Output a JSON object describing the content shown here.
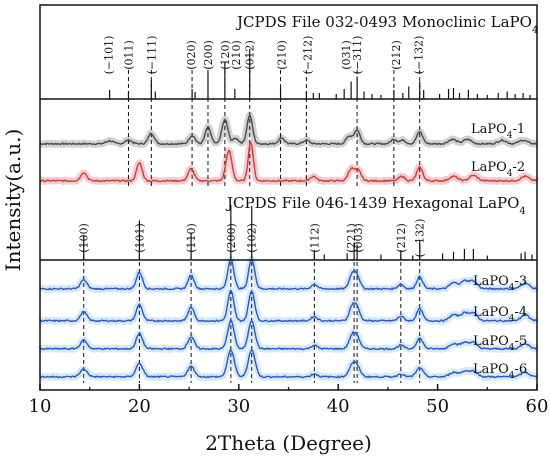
{
  "chart_data": {
    "type": "line",
    "xlabel": "2Theta (Degree)",
    "ylabel": "Intensity(a.u.)",
    "xlim": [
      10,
      60
    ],
    "x_ticks": [
      "10",
      "20",
      "30",
      "40",
      "50",
      "60"
    ],
    "reference_cards": [
      {
        "title": "JCPDS File  032-0493  Monoclinic LaPO",
        "subscript": "4",
        "sticks": [
          {
            "x": 17.0,
            "h": 0.18
          },
          {
            "x": 18.9,
            "h": 0.15
          },
          {
            "x": 21.2,
            "h": 0.38
          },
          {
            "x": 21.6,
            "h": 0.15
          },
          {
            "x": 25.3,
            "h": 0.2
          },
          {
            "x": 25.6,
            "h": 0.14
          },
          {
            "x": 26.9,
            "h": 0.55
          },
          {
            "x": 28.6,
            "h": 0.75
          },
          {
            "x": 29.6,
            "h": 0.2
          },
          {
            "x": 31.1,
            "h": 1.0
          },
          {
            "x": 34.2,
            "h": 0.22
          },
          {
            "x": 36.8,
            "h": 0.15
          },
          {
            "x": 37.5,
            "h": 0.12
          },
          {
            "x": 38.1,
            "h": 0.12
          },
          {
            "x": 39.8,
            "h": 0.1
          },
          {
            "x": 40.6,
            "h": 0.2
          },
          {
            "x": 41.3,
            "h": 0.35
          },
          {
            "x": 41.9,
            "h": 0.45
          },
          {
            "x": 42.6,
            "h": 0.15
          },
          {
            "x": 43.4,
            "h": 0.1
          },
          {
            "x": 44.3,
            "h": 0.08
          },
          {
            "x": 45.6,
            "h": 0.18
          },
          {
            "x": 46.5,
            "h": 0.12
          },
          {
            "x": 47.1,
            "h": 0.25
          },
          {
            "x": 48.2,
            "h": 0.35
          },
          {
            "x": 48.6,
            "h": 0.18
          },
          {
            "x": 50.2,
            "h": 0.1
          },
          {
            "x": 51.1,
            "h": 0.2
          },
          {
            "x": 51.6,
            "h": 0.22
          },
          {
            "x": 52.2,
            "h": 0.12
          },
          {
            "x": 53.1,
            "h": 0.18
          },
          {
            "x": 54.0,
            "h": 0.1
          },
          {
            "x": 55.0,
            "h": 0.08
          },
          {
            "x": 56.1,
            "h": 0.12
          },
          {
            "x": 57.0,
            "h": 0.15
          },
          {
            "x": 57.8,
            "h": 0.1
          },
          {
            "x": 58.6,
            "h": 0.12
          },
          {
            "x": 59.3,
            "h": 0.08
          }
        ],
        "miller": [
          {
            "x": 16.9,
            "label": "(−101)"
          },
          {
            "x": 18.9,
            "label": "(011)"
          },
          {
            "x": 21.2,
            "label": "(−111)"
          },
          {
            "x": 25.2,
            "label": "(020)"
          },
          {
            "x": 26.9,
            "label": "(200)"
          },
          {
            "x": 28.6,
            "label": "(120)"
          },
          {
            "x": 29.7,
            "label": "(210)"
          },
          {
            "x": 31.1,
            "label": "(012)"
          },
          {
            "x": 34.3,
            "label": "(210)"
          },
          {
            "x": 36.9,
            "label": "(−212)"
          },
          {
            "x": 40.8,
            "label": "(031)"
          },
          {
            "x": 41.9,
            "label": "(−311)"
          },
          {
            "x": 45.8,
            "label": "(212)"
          },
          {
            "x": 48.1,
            "label": "(−132)"
          }
        ],
        "guides": [
          18.9,
          21.2,
          25.3,
          26.9,
          28.6,
          31.1,
          34.2,
          36.8,
          41.9,
          45.6,
          48.2
        ]
      },
      {
        "title": "JCPDS File  046-1439 Hexagonal LaPO",
        "subscript": "4",
        "sticks": [
          {
            "x": 14.4,
            "h": 0.45
          },
          {
            "x": 20.0,
            "h": 0.72
          },
          {
            "x": 25.2,
            "h": 0.5
          },
          {
            "x": 29.2,
            "h": 1.0
          },
          {
            "x": 31.3,
            "h": 0.98
          },
          {
            "x": 37.6,
            "h": 0.18
          },
          {
            "x": 38.6,
            "h": 0.1
          },
          {
            "x": 40.9,
            "h": 0.12
          },
          {
            "x": 41.6,
            "h": 0.3
          },
          {
            "x": 41.9,
            "h": 0.28
          },
          {
            "x": 44.3,
            "h": 0.1
          },
          {
            "x": 46.3,
            "h": 0.18
          },
          {
            "x": 47.5,
            "h": 0.08
          },
          {
            "x": 48.2,
            "h": 0.35
          },
          {
            "x": 50.5,
            "h": 0.12
          },
          {
            "x": 51.6,
            "h": 0.15
          },
          {
            "x": 52.7,
            "h": 0.2
          },
          {
            "x": 53.6,
            "h": 0.2
          },
          {
            "x": 55.0,
            "h": 0.08
          },
          {
            "x": 58.4,
            "h": 0.12
          },
          {
            "x": 58.8,
            "h": 0.15
          },
          {
            "x": 59.5,
            "h": 0.1
          }
        ],
        "miller": [
          {
            "x": 14.4,
            "label": "(100)"
          },
          {
            "x": 20.0,
            "label": "(101)"
          },
          {
            "x": 25.2,
            "label": "(110)"
          },
          {
            "x": 29.2,
            "label": "(200)"
          },
          {
            "x": 31.3,
            "label": "(102)"
          },
          {
            "x": 37.6,
            "label": "(112)"
          },
          {
            "x": 41.3,
            "label": "(221)"
          },
          {
            "x": 42.0,
            "label": "(003)"
          },
          {
            "x": 46.3,
            "label": "(212)"
          },
          {
            "x": 48.2,
            "label": "(−132)"
          }
        ],
        "guides": [
          14.4,
          20.0,
          25.2,
          29.2,
          31.3,
          37.6,
          41.6,
          41.9,
          46.3,
          48.2
        ]
      }
    ],
    "series": [
      {
        "name": "LaPO",
        "subscript": "4",
        "suffix": "-1",
        "color": "#4a4a4a",
        "band": "#cccccc",
        "group": "monoclinic",
        "peaks": [
          {
            "x": 17.0,
            "h": 0.1,
            "w": 0.35
          },
          {
            "x": 18.9,
            "h": 0.12,
            "w": 0.35
          },
          {
            "x": 21.2,
            "h": 0.35,
            "w": 0.3
          },
          {
            "x": 25.3,
            "h": 0.28,
            "w": 0.3
          },
          {
            "x": 26.9,
            "h": 0.55,
            "w": 0.28
          },
          {
            "x": 28.6,
            "h": 0.8,
            "w": 0.3
          },
          {
            "x": 29.7,
            "h": 0.18,
            "w": 0.3
          },
          {
            "x": 31.1,
            "h": 0.95,
            "w": 0.28
          },
          {
            "x": 34.3,
            "h": 0.2,
            "w": 0.3
          },
          {
            "x": 36.8,
            "h": 0.12,
            "w": 0.3
          },
          {
            "x": 41.1,
            "h": 0.25,
            "w": 0.3
          },
          {
            "x": 41.9,
            "h": 0.45,
            "w": 0.3
          },
          {
            "x": 45.6,
            "h": 0.15,
            "w": 0.3
          },
          {
            "x": 46.5,
            "h": 0.12,
            "w": 0.3
          },
          {
            "x": 48.2,
            "h": 0.4,
            "w": 0.3
          },
          {
            "x": 51.5,
            "h": 0.15,
            "w": 0.4
          },
          {
            "x": 53.0,
            "h": 0.15,
            "w": 0.4
          },
          {
            "x": 56.5,
            "h": 0.12,
            "w": 0.4
          },
          {
            "x": 58.6,
            "h": 0.12,
            "w": 0.4
          }
        ]
      },
      {
        "name": "LaPO",
        "subscript": "4",
        "suffix": "-2",
        "color": "#c8422f",
        "band": "#f4c6cf",
        "group": "monoclinic",
        "peaks": [
          {
            "x": 14.4,
            "h": 0.28,
            "w": 0.3
          },
          {
            "x": 20.0,
            "h": 0.6,
            "w": 0.28
          },
          {
            "x": 25.2,
            "h": 0.4,
            "w": 0.3
          },
          {
            "x": 29.0,
            "h": 1.0,
            "w": 0.3
          },
          {
            "x": 31.2,
            "h": 1.3,
            "w": 0.25
          },
          {
            "x": 37.5,
            "h": 0.15,
            "w": 0.3
          },
          {
            "x": 41.3,
            "h": 0.4,
            "w": 0.3
          },
          {
            "x": 42.0,
            "h": 0.35,
            "w": 0.3
          },
          {
            "x": 46.4,
            "h": 0.15,
            "w": 0.3
          },
          {
            "x": 48.2,
            "h": 0.45,
            "w": 0.3
          },
          {
            "x": 51.6,
            "h": 0.15,
            "w": 0.4
          },
          {
            "x": 53.6,
            "h": 0.18,
            "w": 0.4
          },
          {
            "x": 58.8,
            "h": 0.15,
            "w": 0.4
          }
        ]
      },
      {
        "name": "LaPO",
        "subscript": "4",
        "suffix": "-3",
        "color": "#2f56c8",
        "band": "#cfe8f7",
        "group": "hexagonal",
        "peaks": [
          {
            "x": 14.4,
            "h": 0.3,
            "w": 0.32
          },
          {
            "x": 20.0,
            "h": 0.55,
            "w": 0.3
          },
          {
            "x": 25.2,
            "h": 0.45,
            "w": 0.3
          },
          {
            "x": 29.2,
            "h": 1.0,
            "w": 0.3
          },
          {
            "x": 31.3,
            "h": 1.0,
            "w": 0.3
          },
          {
            "x": 37.6,
            "h": 0.15,
            "w": 0.3
          },
          {
            "x": 41.4,
            "h": 0.45,
            "w": 0.3
          },
          {
            "x": 41.9,
            "h": 0.4,
            "w": 0.3
          },
          {
            "x": 46.3,
            "h": 0.15,
            "w": 0.3
          },
          {
            "x": 48.2,
            "h": 0.4,
            "w": 0.3
          },
          {
            "x": 51.6,
            "h": 0.2,
            "w": 0.4
          },
          {
            "x": 52.7,
            "h": 0.25,
            "w": 0.4
          },
          {
            "x": 53.6,
            "h": 0.25,
            "w": 0.4
          },
          {
            "x": 58.8,
            "h": 0.2,
            "w": 0.4
          }
        ]
      },
      {
        "name": "LaPO",
        "subscript": "4",
        "suffix": "-4",
        "color": "#2f56c8",
        "band": "#cfe8f7",
        "group": "hexagonal",
        "peaks": [
          {
            "x": 14.4,
            "h": 0.3,
            "w": 0.32
          },
          {
            "x": 20.0,
            "h": 0.55,
            "w": 0.3
          },
          {
            "x": 25.2,
            "h": 0.45,
            "w": 0.3
          },
          {
            "x": 29.2,
            "h": 1.0,
            "w": 0.3
          },
          {
            "x": 31.3,
            "h": 1.0,
            "w": 0.3
          },
          {
            "x": 37.6,
            "h": 0.15,
            "w": 0.3
          },
          {
            "x": 41.4,
            "h": 0.45,
            "w": 0.3
          },
          {
            "x": 41.9,
            "h": 0.4,
            "w": 0.3
          },
          {
            "x": 46.3,
            "h": 0.15,
            "w": 0.3
          },
          {
            "x": 48.2,
            "h": 0.4,
            "w": 0.3
          },
          {
            "x": 51.6,
            "h": 0.2,
            "w": 0.4
          },
          {
            "x": 52.7,
            "h": 0.25,
            "w": 0.4
          },
          {
            "x": 53.6,
            "h": 0.25,
            "w": 0.4
          },
          {
            "x": 58.8,
            "h": 0.2,
            "w": 0.4
          }
        ]
      },
      {
        "name": "LaPO",
        "subscript": "4",
        "suffix": "-5",
        "color": "#2f56c8",
        "band": "#cfe8f7",
        "group": "hexagonal",
        "peaks": [
          {
            "x": 14.4,
            "h": 0.28,
            "w": 0.34
          },
          {
            "x": 20.0,
            "h": 0.5,
            "w": 0.32
          },
          {
            "x": 25.2,
            "h": 0.4,
            "w": 0.32
          },
          {
            "x": 29.2,
            "h": 0.95,
            "w": 0.32
          },
          {
            "x": 31.3,
            "h": 0.95,
            "w": 0.32
          },
          {
            "x": 37.6,
            "h": 0.12,
            "w": 0.3
          },
          {
            "x": 41.4,
            "h": 0.4,
            "w": 0.32
          },
          {
            "x": 41.9,
            "h": 0.35,
            "w": 0.32
          },
          {
            "x": 46.3,
            "h": 0.12,
            "w": 0.3
          },
          {
            "x": 48.2,
            "h": 0.35,
            "w": 0.32
          },
          {
            "x": 51.6,
            "h": 0.18,
            "w": 0.4
          },
          {
            "x": 52.7,
            "h": 0.2,
            "w": 0.4
          },
          {
            "x": 53.6,
            "h": 0.2,
            "w": 0.4
          },
          {
            "x": 58.8,
            "h": 0.18,
            "w": 0.4
          }
        ]
      },
      {
        "name": "LaPO",
        "subscript": "4",
        "suffix": "-6",
        "color": "#2f56c8",
        "band": "#cfe8f7",
        "group": "hexagonal",
        "peaks": [
          {
            "x": 14.4,
            "h": 0.25,
            "w": 0.36
          },
          {
            "x": 20.0,
            "h": 0.45,
            "w": 0.34
          },
          {
            "x": 25.2,
            "h": 0.35,
            "w": 0.34
          },
          {
            "x": 29.2,
            "h": 0.9,
            "w": 0.34
          },
          {
            "x": 31.3,
            "h": 0.9,
            "w": 0.34
          },
          {
            "x": 37.6,
            "h": 0.1,
            "w": 0.3
          },
          {
            "x": 41.4,
            "h": 0.35,
            "w": 0.34
          },
          {
            "x": 41.9,
            "h": 0.3,
            "w": 0.34
          },
          {
            "x": 46.3,
            "h": 0.1,
            "w": 0.3
          },
          {
            "x": 48.2,
            "h": 0.3,
            "w": 0.34
          },
          {
            "x": 51.6,
            "h": 0.15,
            "w": 0.4
          },
          {
            "x": 52.7,
            "h": 0.18,
            "w": 0.4
          },
          {
            "x": 53.6,
            "h": 0.18,
            "w": 0.4
          },
          {
            "x": 58.8,
            "h": 0.15,
            "w": 0.4
          }
        ]
      }
    ]
  }
}
